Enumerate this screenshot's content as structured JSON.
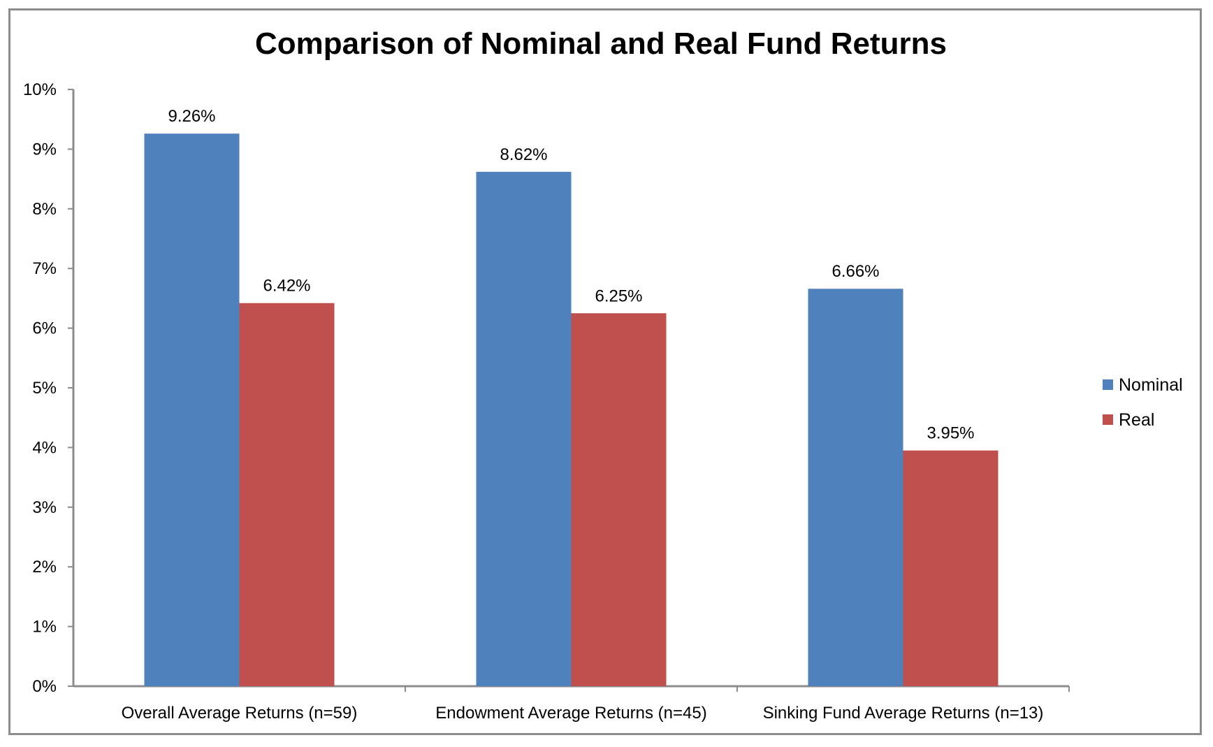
{
  "chart_data": {
    "type": "bar",
    "title": "Comparison of Nominal and Real Fund Returns",
    "xlabel": "",
    "ylabel": "",
    "categories": [
      "Overall Average Returns (n=59)",
      "Endowment Average Returns (n=45)",
      "Sinking Fund Average Returns (n=13)"
    ],
    "series": [
      {
        "name": "Nominal",
        "values": [
          9.26,
          8.62,
          6.66
        ],
        "labels": [
          "9.26%",
          "8.62%",
          "6.66%"
        ],
        "color": "#4f81bd"
      },
      {
        "name": "Real",
        "values": [
          6.42,
          6.25,
          3.95
        ],
        "labels": [
          "6.42%",
          "6.25%",
          "3.95%"
        ],
        "color": "#c0504d"
      }
    ],
    "ylim": [
      0,
      10
    ],
    "yticks": [
      "0%",
      "1%",
      "2%",
      "3%",
      "4%",
      "5%",
      "6%",
      "7%",
      "8%",
      "9%",
      "10%"
    ],
    "grid": false,
    "legend_position": "right"
  }
}
